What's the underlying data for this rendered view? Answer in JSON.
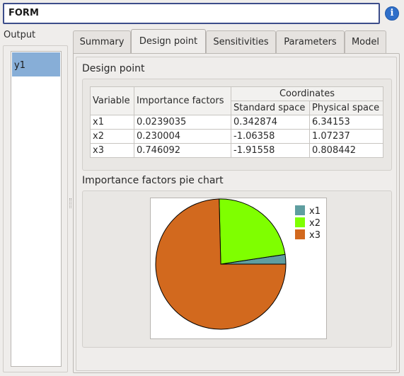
{
  "window": {
    "method_name": "FORM",
    "info_button_glyph": "i",
    "info_icon": "info-icon"
  },
  "output": {
    "label": "Output",
    "items": [
      "y1"
    ],
    "selected": "y1"
  },
  "tabs": [
    {
      "label": "Summary",
      "active": false
    },
    {
      "label": "Design point",
      "active": true
    },
    {
      "label": "Sensitivities",
      "active": false
    },
    {
      "label": "Parameters",
      "active": false
    },
    {
      "label": "Model",
      "active": false
    }
  ],
  "design_point": {
    "section_title": "Design point",
    "headers": {
      "variable": "Variable",
      "importance": "Importance factors",
      "coordinates": "Coordinates",
      "standard": "Standard space",
      "physical": "Physical space"
    },
    "rows": [
      {
        "variable": "x1",
        "importance": "0.0239035",
        "standard": "0.342874",
        "physical": "6.34153"
      },
      {
        "variable": "x2",
        "importance": "0.230004",
        "standard": "-1.06358",
        "physical": "1.07237"
      },
      {
        "variable": "x3",
        "importance": "0.746092",
        "standard": "-1.91558",
        "physical": "0.808442"
      }
    ]
  },
  "pie_section": {
    "section_title": "Importance factors pie chart"
  },
  "chart_data": {
    "type": "pie",
    "categories": [
      "x1",
      "x2",
      "x3"
    ],
    "values": [
      0.0239035,
      0.230004,
      0.746092
    ],
    "colors": [
      "#5f9ea0",
      "#7fff00",
      "#d2691e"
    ],
    "legend": "top-right",
    "title": ""
  }
}
